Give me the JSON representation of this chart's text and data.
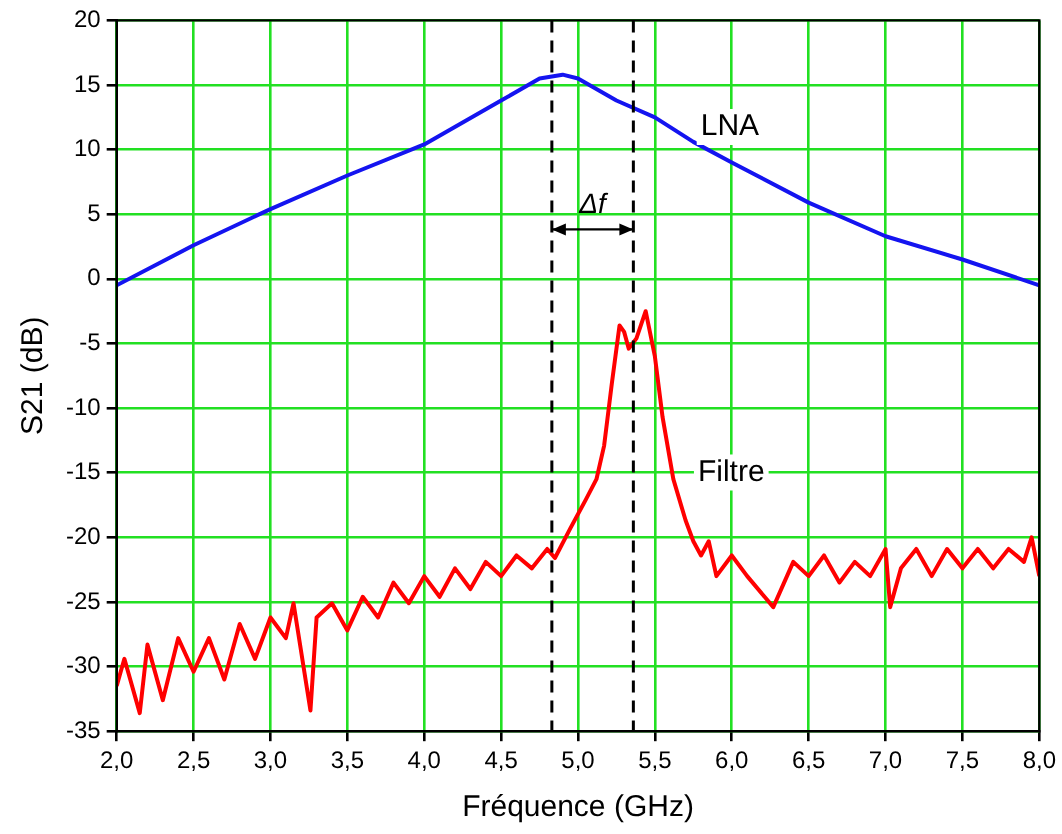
{
  "chart_data": {
    "type": "line",
    "xlabel": "Fréquence (GHz)",
    "ylabel": "S21 (dB)",
    "xlim": [
      2,
      8
    ],
    "ylim": [
      -35,
      20
    ],
    "xticks": [
      {
        "value": 2,
        "label": "2,0"
      },
      {
        "value": 2.5,
        "label": "2,5"
      },
      {
        "value": 3,
        "label": "3,0"
      },
      {
        "value": 3.5,
        "label": "3,5"
      },
      {
        "value": 4,
        "label": "4,0"
      },
      {
        "value": 4.5,
        "label": "4,5"
      },
      {
        "value": 5,
        "label": "5,0"
      },
      {
        "value": 5.5,
        "label": "5,5"
      },
      {
        "value": 6,
        "label": "6,0"
      },
      {
        "value": 6.5,
        "label": "6,5"
      },
      {
        "value": 7,
        "label": "7,0"
      },
      {
        "value": 7.5,
        "label": "7,5"
      },
      {
        "value": 8,
        "label": "8,0"
      }
    ],
    "yticks": [
      -35,
      -30,
      -25,
      -20,
      -15,
      -10,
      -5,
      0,
      5,
      10,
      15,
      20
    ],
    "grid": true,
    "legend": false,
    "marker": "none",
    "line_style": "solid",
    "series": [
      {
        "name": "LNA",
        "color": "#1414f0",
        "x": [
          2,
          2.5,
          3,
          3.5,
          4,
          4.5,
          4.75,
          4.9,
          5,
          5.25,
          5.5,
          5.75,
          6,
          6.5,
          7,
          7.5,
          8
        ],
        "values": [
          -0.5,
          2.6,
          5.4,
          8,
          10.4,
          13.8,
          15.5,
          15.8,
          15.5,
          13.8,
          12.5,
          10.6,
          9,
          5.9,
          3.3,
          1.5,
          -0.5
        ]
      },
      {
        "name": "Filtre",
        "color": "#ff0000",
        "x": [
          2,
          2.05,
          2.15,
          2.2,
          2.3,
          2.4,
          2.5,
          2.6,
          2.7,
          2.8,
          2.9,
          3,
          3.1,
          3.15,
          3.26,
          3.3,
          3.4,
          3.5,
          3.6,
          3.7,
          3.8,
          3.9,
          4,
          4.1,
          4.2,
          4.3,
          4.4,
          4.5,
          4.6,
          4.7,
          4.8,
          4.85,
          4.95,
          5.05,
          5.12,
          5.17,
          5.22,
          5.27,
          5.3,
          5.33,
          5.38,
          5.44,
          5.5,
          5.55,
          5.62,
          5.7,
          5.75,
          5.8,
          5.85,
          5.9,
          6,
          6.1,
          6.27,
          6.4,
          6.5,
          6.6,
          6.7,
          6.8,
          6.9,
          7,
          7.03,
          7.1,
          7.2,
          7.3,
          7.4,
          7.5,
          7.6,
          7.7,
          7.8,
          7.9,
          7.95,
          8
        ],
        "values": [
          -31.5,
          -29.4,
          -33.6,
          -28.3,
          -32.6,
          -27.8,
          -30.4,
          -27.8,
          -31,
          -26.7,
          -29.4,
          -26.2,
          -27.8,
          -25.1,
          -33.4,
          -26.2,
          -25.1,
          -27.2,
          -24.6,
          -26.2,
          -23.5,
          -25.1,
          -23,
          -24.6,
          -22.4,
          -24,
          -21.9,
          -23,
          -21.4,
          -22.4,
          -20.9,
          -21.6,
          -19.3,
          -17.1,
          -15.5,
          -12.9,
          -8.1,
          -3.6,
          -4.1,
          -5.4,
          -4.6,
          -2.5,
          -6,
          -10.7,
          -15.5,
          -18.7,
          -20.3,
          -21.4,
          -20.3,
          -23,
          -21.4,
          -23,
          -25.4,
          -21.9,
          -23,
          -21.4,
          -23.5,
          -21.9,
          -23,
          -20.9,
          -25.4,
          -22.4,
          -20.9,
          -23,
          -20.9,
          -22.4,
          -20.9,
          -22.4,
          -20.9,
          -21.9,
          -20,
          -23
        ]
      }
    ],
    "ref_lines": [
      {
        "axis": "x",
        "value": 4.83,
        "color": "#000000",
        "line_style": "dashed"
      },
      {
        "axis": "x",
        "value": 5.36,
        "color": "#000000",
        "line_style": "dashed"
      }
    ],
    "annotations": [
      "Δf"
    ]
  }
}
